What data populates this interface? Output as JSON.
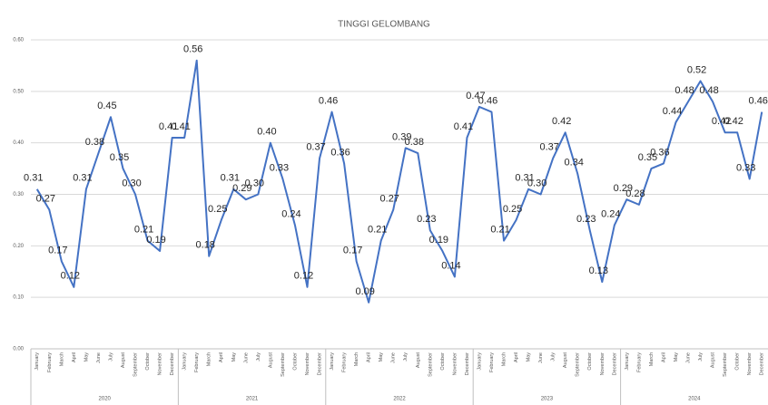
{
  "chart_data": {
    "type": "line",
    "title": "TINGGI GELOMBANG",
    "categories": [
      "January",
      "February",
      "March",
      "April",
      "May",
      "June",
      "July",
      "August",
      "September",
      "October",
      "November",
      "December",
      "January",
      "February",
      "March",
      "April",
      "May",
      "June",
      "July",
      "August",
      "September",
      "October",
      "November",
      "December",
      "January",
      "February",
      "March",
      "April",
      "May",
      "June",
      "July",
      "August",
      "September",
      "October",
      "November",
      "December",
      "January",
      "February",
      "March",
      "April",
      "May",
      "June",
      "July",
      "August",
      "September",
      "October",
      "November",
      "December",
      "January",
      "February",
      "March",
      "April",
      "May",
      "June",
      "July",
      "August",
      "September",
      "October",
      "November",
      "December"
    ],
    "years": [
      "2020",
      "2021",
      "2022",
      "2023",
      "2024"
    ],
    "series": [
      {
        "color": "#4472c4",
        "values": [
          0.31,
          0.27,
          0.17,
          0.12,
          0.31,
          0.38,
          0.45,
          0.35,
          0.3,
          0.21,
          0.19,
          0.41,
          0.41,
          0.56,
          0.18,
          0.25,
          0.31,
          0.29,
          0.3,
          0.4,
          0.33,
          0.24,
          0.12,
          0.37,
          0.46,
          0.36,
          0.17,
          0.09,
          0.21,
          0.27,
          0.39,
          0.38,
          0.23,
          0.19,
          0.14,
          0.41,
          0.47,
          0.46,
          0.21,
          0.25,
          0.31,
          0.3,
          0.37,
          0.42,
          0.34,
          0.23,
          0.13,
          0.24,
          0.29,
          0.28,
          0.35,
          0.36,
          0.44,
          0.48,
          0.52,
          0.48,
          0.42,
          0.42,
          0.33,
          0.46
        ],
        "value_labels": [
          "0.31",
          "0.27",
          "0.17",
          "0.12",
          "0.31",
          "0.38",
          "0.45",
          "0.35",
          "0.30",
          "0.21",
          "0.19",
          "0.41",
          "0.41",
          "0.56",
          "0.18",
          "0.25",
          "0.31",
          "0.29",
          "0.30",
          "0.40",
          "0.33",
          "0.24",
          "0.12",
          "0.37",
          "0.46",
          "0.36",
          "0.17",
          "0.09",
          "0.21",
          "0.27",
          "0.39",
          "0.38",
          "0.23",
          "0.19",
          "0.14",
          "0.41",
          "0.47",
          "0.46",
          "0.21",
          "0.25",
          "0.31",
          "0.30",
          "0.37",
          "0.42",
          "0.34",
          "0.23",
          "0.13",
          "0.24",
          "0.29",
          "0.28",
          "0.35",
          "0.36",
          "0.44",
          "0.48",
          "0.52",
          "0.48",
          "0.42",
          "0.42",
          "0.33",
          "0.46"
        ]
      }
    ],
    "ylim": [
      0,
      0.6
    ],
    "yticks": [
      {
        "value": 0,
        "label": "0.00"
      },
      {
        "value": 0.1,
        "label": "0.10"
      },
      {
        "value": 0.2,
        "label": "0.20"
      },
      {
        "value": 0.3,
        "label": "0.30"
      },
      {
        "value": 0.4,
        "label": "0.40"
      },
      {
        "value": 0.5,
        "label": "0.50"
      },
      {
        "value": 0.6,
        "label": "0.60"
      }
    ],
    "grid": true
  }
}
